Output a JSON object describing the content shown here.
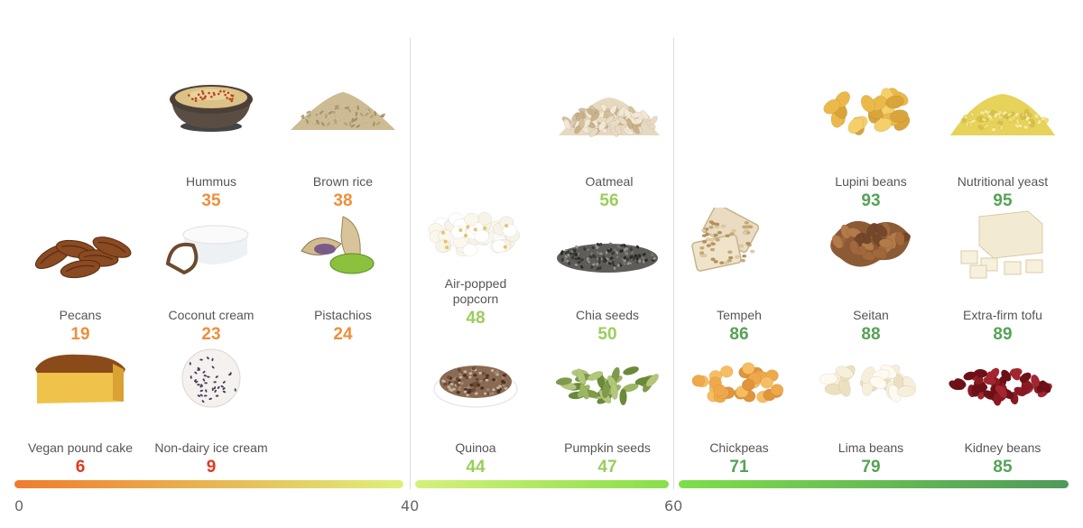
{
  "colors": {
    "low": "#e03a1e",
    "mid_low": "#ee8f3c",
    "mid": "#9ccd5a",
    "high": "#55a356"
  },
  "bands": [
    {
      "name": "band-0-40",
      "from_color": "#f07b2c",
      "to_color": "#dff07a"
    },
    {
      "name": "band-40-60",
      "from_color": "#d6f07a",
      "to_color": "#86df4a"
    },
    {
      "name": "band-60-100",
      "from_color": "#7ede4a",
      "to_color": "#4f9a5a"
    }
  ],
  "scale": {
    "ticks": [
      "0",
      "40",
      "60"
    ]
  },
  "foods": [
    {
      "id": "hummus",
      "name": "Hummus",
      "score": 35,
      "icon": "hummus-bowl-icon",
      "color": "mid_low"
    },
    {
      "id": "brown-rice",
      "name": "Brown rice",
      "score": 38,
      "icon": "grain-pile-icon",
      "color": "mid_low"
    },
    {
      "id": "pecans",
      "name": "Pecans",
      "score": 19,
      "icon": "pecans-icon",
      "color": "mid_low"
    },
    {
      "id": "coconut-cream",
      "name": "Coconut cream",
      "score": 23,
      "icon": "coconut-cream-icon",
      "color": "mid_low"
    },
    {
      "id": "pistachios",
      "name": "Pistachios",
      "score": 24,
      "icon": "pistachios-icon",
      "color": "mid_low"
    },
    {
      "id": "vegan-pound-cake",
      "name": "Vegan pound cake",
      "score": 6,
      "icon": "pound-cake-icon",
      "color": "low"
    },
    {
      "id": "non-dairy-ice-cream",
      "name": "Non-dairy ice cream",
      "score": 9,
      "icon": "ice-cream-scoop-icon",
      "color": "low"
    },
    {
      "id": "oatmeal",
      "name": "Oatmeal",
      "score": 56,
      "icon": "oat-flakes-icon",
      "color": "mid"
    },
    {
      "id": "air-popped-popcorn",
      "name": "Air-popped\npopcorn",
      "score": 48,
      "icon": "popcorn-icon",
      "color": "mid"
    },
    {
      "id": "chia-seeds",
      "name": "Chia seeds",
      "score": 50,
      "icon": "chia-seeds-icon",
      "color": "mid"
    },
    {
      "id": "quinoa",
      "name": "Quinoa",
      "score": 44,
      "icon": "quinoa-bowl-icon",
      "color": "mid"
    },
    {
      "id": "pumpkin-seeds",
      "name": "Pumpkin seeds",
      "score": 47,
      "icon": "pumpkin-seeds-icon",
      "color": "mid"
    },
    {
      "id": "lupini-beans",
      "name": "Lupini beans",
      "score": 93,
      "icon": "lupini-beans-icon",
      "color": "high"
    },
    {
      "id": "nutritional-yeast",
      "name": "Nutritional yeast",
      "score": 95,
      "icon": "yeast-flakes-icon",
      "color": "high"
    },
    {
      "id": "tempeh",
      "name": "Tempeh",
      "score": 86,
      "icon": "tempeh-icon",
      "color": "high"
    },
    {
      "id": "seitan",
      "name": "Seitan",
      "score": 88,
      "icon": "seitan-icon",
      "color": "high"
    },
    {
      "id": "extra-firm-tofu",
      "name": "Extra-firm tofu",
      "score": 89,
      "icon": "tofu-cubes-icon",
      "color": "high"
    },
    {
      "id": "chickpeas",
      "name": "Chickpeas",
      "score": 71,
      "icon": "chickpeas-icon",
      "color": "high"
    },
    {
      "id": "lima-beans",
      "name": "Lima beans",
      "score": 79,
      "icon": "lima-beans-icon",
      "color": "high"
    },
    {
      "id": "kidney-beans",
      "name": "Kidney beans",
      "score": 85,
      "icon": "kidney-beans-icon",
      "color": "high"
    }
  ]
}
